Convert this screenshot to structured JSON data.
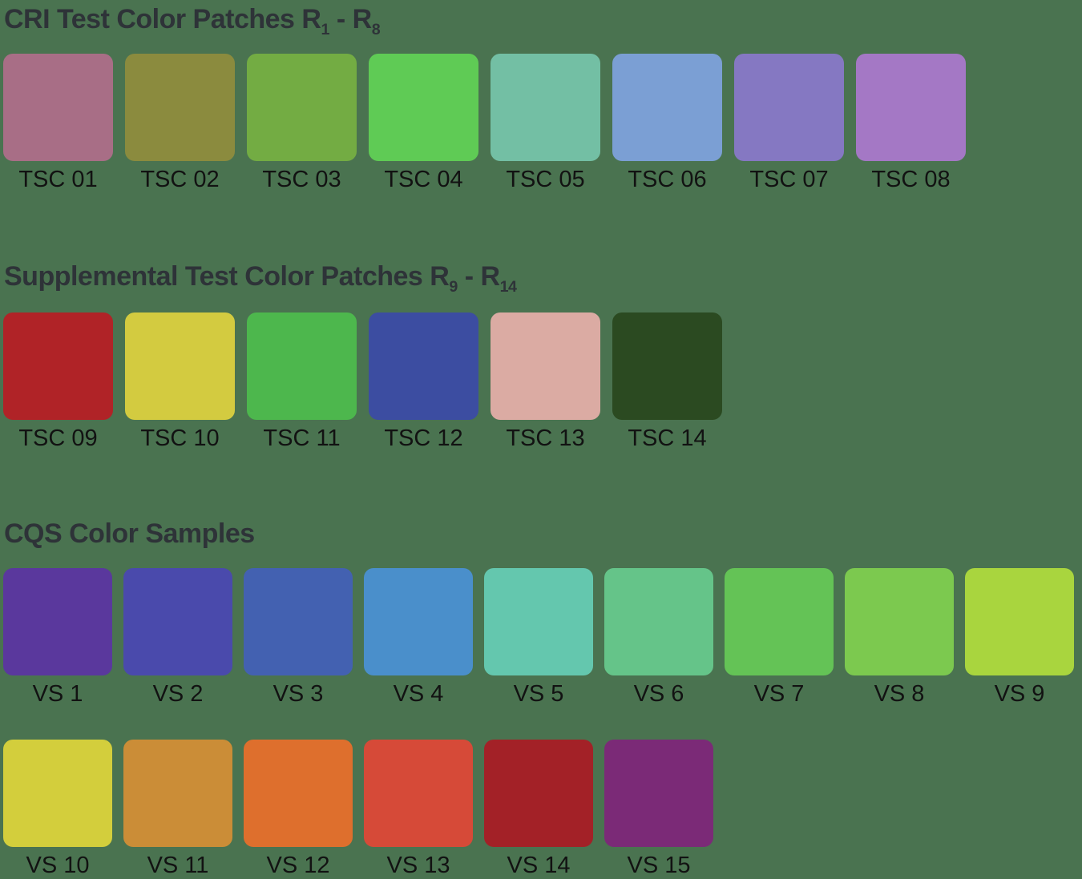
{
  "colors": {
    "background": "#4A7350",
    "heading_text": "#2E3338",
    "label_text": "#121212"
  },
  "sections": {
    "cri": {
      "title": {
        "main": "CRI Test Color Patches R",
        "sub_a": "1",
        "sep": " - R",
        "sub_b": "8"
      },
      "patches": [
        {
          "label": "TSC 01",
          "color": "#A86E86"
        },
        {
          "label": "TSC 02",
          "color": "#8B8B3E"
        },
        {
          "label": "TSC 03",
          "color": "#73AC43"
        },
        {
          "label": "TSC 04",
          "color": "#5FCB55"
        },
        {
          "label": "TSC 05",
          "color": "#73BFA4"
        },
        {
          "label": "TSC 06",
          "color": "#7B9FD4"
        },
        {
          "label": "TSC 07",
          "color": "#8578C2"
        },
        {
          "label": "TSC 08",
          "color": "#A478C5"
        }
      ]
    },
    "supplemental": {
      "title": {
        "main": "Supplemental Test Color Patches R",
        "sub_a": "9",
        "sep": " - R",
        "sub_b": "14"
      },
      "patches": [
        {
          "label": "TSC 09",
          "color": "#B02327"
        },
        {
          "label": "TSC 10",
          "color": "#D3CB40"
        },
        {
          "label": "TSC 11",
          "color": "#4DB74D"
        },
        {
          "label": "TSC 12",
          "color": "#3C4DA1"
        },
        {
          "label": "TSC 13",
          "color": "#DBABA3"
        },
        {
          "label": "TSC 14",
          "color": "#2B4A21"
        }
      ]
    },
    "cqs": {
      "title": {
        "main": "CQS Color Samples",
        "sub_a": "",
        "sep": "",
        "sub_b": ""
      },
      "patches": [
        {
          "label": "VS 1",
          "color": "#5A389D"
        },
        {
          "label": "VS 2",
          "color": "#4A4AAC"
        },
        {
          "label": "VS 3",
          "color": "#4361B1"
        },
        {
          "label": "VS 4",
          "color": "#4A8FCB"
        },
        {
          "label": "VS 5",
          "color": "#64C7AE"
        },
        {
          "label": "VS 6",
          "color": "#65C489"
        },
        {
          "label": "VS 7",
          "color": "#64C356"
        },
        {
          "label": "VS 8",
          "color": "#7CC94F"
        },
        {
          "label": "VS 9",
          "color": "#A9D53E"
        },
        {
          "label": "VS 10",
          "color": "#D3CE3C"
        },
        {
          "label": "VS 11",
          "color": "#CB8D37"
        },
        {
          "label": "VS 12",
          "color": "#DE6F2D"
        },
        {
          "label": "VS 13",
          "color": "#D64A38"
        },
        {
          "label": "VS 14",
          "color": "#A32127"
        },
        {
          "label": "VS 15",
          "color": "#7B2A77"
        }
      ]
    }
  },
  "chart_data": [
    {
      "type": "table",
      "title": "CRI Test Color Patches R1 - R8",
      "categories": [
        "TSC 01",
        "TSC 02",
        "TSC 03",
        "TSC 04",
        "TSC 05",
        "TSC 06",
        "TSC 07",
        "TSC 08"
      ],
      "values": [
        "#A86E86",
        "#8B8B3E",
        "#73AC43",
        "#5FCB55",
        "#73BFA4",
        "#7B9FD4",
        "#8578C2",
        "#A478C5"
      ]
    },
    {
      "type": "table",
      "title": "Supplemental Test Color Patches R9 - R14",
      "categories": [
        "TSC 09",
        "TSC 10",
        "TSC 11",
        "TSC 12",
        "TSC 13",
        "TSC 14"
      ],
      "values": [
        "#B02327",
        "#D3CB40",
        "#4DB74D",
        "#3C4DA1",
        "#DBABA3",
        "#2B4A21"
      ]
    },
    {
      "type": "table",
      "title": "CQS Color Samples",
      "categories": [
        "VS 1",
        "VS 2",
        "VS 3",
        "VS 4",
        "VS 5",
        "VS 6",
        "VS 7",
        "VS 8",
        "VS 9",
        "VS 10",
        "VS 11",
        "VS 12",
        "VS 13",
        "VS 14",
        "VS 15"
      ],
      "values": [
        "#5A389D",
        "#4A4AAC",
        "#4361B1",
        "#4A8FCB",
        "#64C7AE",
        "#65C489",
        "#64C356",
        "#7CC94F",
        "#A9D53E",
        "#D3CE3C",
        "#CB8D37",
        "#DE6F2D",
        "#D64A38",
        "#A32127",
        "#7B2A77"
      ]
    }
  ]
}
